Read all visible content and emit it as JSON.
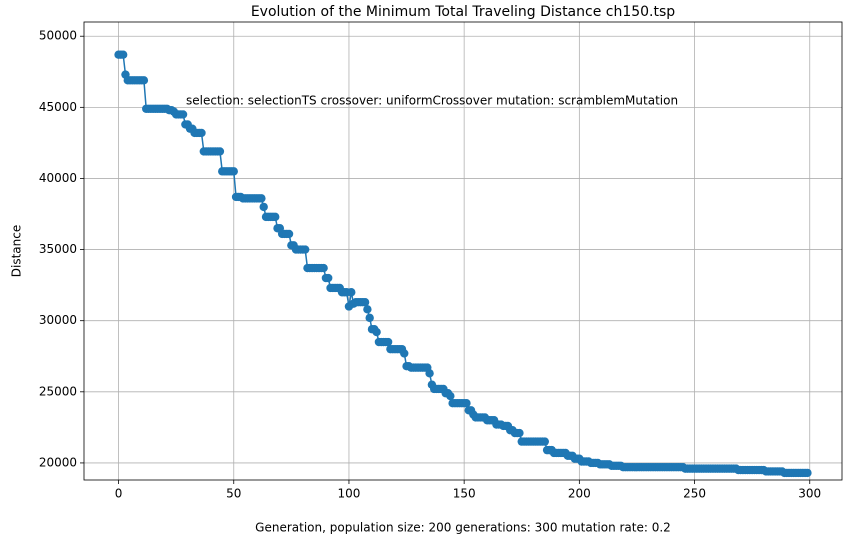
{
  "chart_data": {
    "type": "line",
    "title": "Evolution of the Minimum Total Traveling Distance ch150.tsp",
    "xlabel": "Generation,  population size: 200 generations: 300 mutation rate: 0.2",
    "ylabel": "Distance",
    "annotation": "selection: selectionTS crossover: uniformCrossover mutation: scramblemMutation",
    "color": "#1f77b4",
    "marker": "o",
    "grid": true,
    "xlim": [
      -15,
      314
    ],
    "ylim": [
      18800,
      51000
    ],
    "xticks": [
      0,
      50,
      100,
      150,
      200,
      250,
      300
    ],
    "yticks": [
      20000,
      25000,
      30000,
      35000,
      40000,
      45000,
      50000
    ],
    "x": [
      0,
      1,
      2,
      3,
      4,
      5,
      6,
      7,
      8,
      9,
      10,
      11,
      12,
      13,
      14,
      15,
      16,
      17,
      18,
      19,
      20,
      21,
      22,
      23,
      24,
      25,
      26,
      27,
      28,
      29,
      30,
      31,
      32,
      33,
      34,
      35,
      36,
      37,
      38,
      39,
      40,
      41,
      42,
      43,
      44,
      45,
      46,
      47,
      48,
      49,
      50,
      51,
      52,
      53,
      54,
      55,
      56,
      57,
      58,
      59,
      60,
      61,
      62,
      63,
      64,
      65,
      66,
      67,
      68,
      69,
      70,
      71,
      72,
      73,
      74,
      75,
      76,
      77,
      78,
      79,
      80,
      81,
      82,
      83,
      84,
      85,
      86,
      87,
      88,
      89,
      90,
      91,
      92,
      93,
      94,
      95,
      96,
      97,
      98,
      99,
      100,
      101,
      102,
      103,
      104,
      105,
      106,
      107,
      108,
      109,
      110,
      111,
      112,
      113,
      114,
      115,
      116,
      117,
      118,
      119,
      120,
      121,
      122,
      123,
      124,
      125,
      126,
      127,
      128,
      129,
      130,
      131,
      132,
      133,
      134,
      135,
      136,
      137,
      138,
      139,
      140,
      141,
      142,
      143,
      144,
      145,
      146,
      147,
      148,
      149,
      150,
      151,
      152,
      153,
      154,
      155,
      156,
      157,
      158,
      159,
      160,
      161,
      162,
      163,
      164,
      165,
      166,
      167,
      168,
      169,
      170,
      171,
      172,
      173,
      174,
      175,
      176,
      177,
      178,
      179,
      180,
      181,
      182,
      183,
      184,
      185,
      186,
      187,
      188,
      189,
      190,
      191,
      192,
      193,
      194,
      195,
      196,
      197,
      198,
      199,
      200,
      201,
      202,
      203,
      204,
      205,
      206,
      207,
      208,
      209,
      210,
      211,
      212,
      213,
      214,
      215,
      216,
      217,
      218,
      219,
      220,
      221,
      222,
      223,
      224,
      225,
      226,
      227,
      228,
      229,
      230,
      231,
      232,
      233,
      234,
      235,
      236,
      237,
      238,
      239,
      240,
      241,
      242,
      243,
      244,
      245,
      246,
      247,
      248,
      249,
      250,
      251,
      252,
      253,
      254,
      255,
      256,
      257,
      258,
      259,
      260,
      261,
      262,
      263,
      264,
      265,
      266,
      267,
      268,
      269,
      270,
      271,
      272,
      273,
      274,
      275,
      276,
      277,
      278,
      279,
      280,
      281,
      282,
      283,
      284,
      285,
      286,
      287,
      288,
      289,
      290,
      291,
      292,
      293,
      294,
      295,
      296,
      297,
      298,
      299
    ],
    "values": [
      48700,
      48700,
      48700,
      47300,
      46900,
      46900,
      46900,
      46900,
      46900,
      46900,
      46900,
      46900,
      44900,
      44900,
      44900,
      44900,
      44900,
      44900,
      44900,
      44900,
      44900,
      44900,
      44800,
      44800,
      44700,
      44500,
      44500,
      44500,
      44500,
      43800,
      43800,
      43500,
      43500,
      43200,
      43200,
      43200,
      43200,
      41900,
      41900,
      41900,
      41900,
      41900,
      41900,
      41900,
      41900,
      40500,
      40500,
      40500,
      40500,
      40500,
      40500,
      38700,
      38700,
      38700,
      38600,
      38600,
      38600,
      38600,
      38600,
      38600,
      38600,
      38600,
      38600,
      38000,
      37300,
      37300,
      37300,
      37300,
      37300,
      36500,
      36500,
      36100,
      36100,
      36100,
      36100,
      35300,
      35300,
      35000,
      35000,
      35000,
      35000,
      35000,
      33700,
      33700,
      33700,
      33700,
      33700,
      33700,
      33700,
      33700,
      33000,
      33000,
      32300,
      32300,
      32300,
      32300,
      32300,
      32000,
      32000,
      32000,
      31000,
      32000,
      31200,
      31300,
      31300,
      31300,
      31300,
      31300,
      30800,
      30200,
      29400,
      29400,
      29200,
      28500,
      28500,
      28500,
      28500,
      28500,
      28000,
      28000,
      28000,
      28000,
      28000,
      28000,
      27700,
      26800,
      26800,
      26700,
      26700,
      26700,
      26700,
      26700,
      26700,
      26700,
      26700,
      26300,
      25500,
      25200,
      25200,
      25200,
      25200,
      25200,
      24900,
      24900,
      24700,
      24200,
      24200,
      24200,
      24200,
      24200,
      24200,
      24200,
      23700,
      23700,
      23400,
      23200,
      23200,
      23200,
      23200,
      23200,
      23000,
      23000,
      23000,
      23000,
      22700,
      22700,
      22700,
      22600,
      22600,
      22600,
      22300,
      22300,
      22100,
      22100,
      22100,
      21500,
      21500,
      21500,
      21500,
      21500,
      21500,
      21500,
      21500,
      21500,
      21500,
      21500,
      20900,
      20900,
      20900,
      20700,
      20700,
      20700,
      20700,
      20700,
      20700,
      20500,
      20500,
      20500,
      20300,
      20300,
      20300,
      20100,
      20100,
      20100,
      20100,
      20000,
      20000,
      20000,
      20000,
      19900,
      19900,
      19900,
      19900,
      19900,
      19800,
      19800,
      19800,
      19800,
      19800,
      19700,
      19700,
      19700,
      19700,
      19700,
      19700,
      19700,
      19700,
      19700,
      19700,
      19700,
      19700,
      19700,
      19700,
      19700,
      19700,
      19700,
      19700,
      19700,
      19700,
      19700,
      19700,
      19700,
      19700,
      19700,
      19700,
      19700,
      19600,
      19600,
      19600,
      19600,
      19600,
      19600,
      19600,
      19600,
      19600,
      19600,
      19600,
      19600,
      19600,
      19600,
      19600,
      19600,
      19600,
      19600,
      19600,
      19600,
      19600,
      19600,
      19600,
      19500,
      19500,
      19500,
      19500,
      19500,
      19500,
      19500,
      19500,
      19500,
      19500,
      19500,
      19500,
      19400,
      19400,
      19400,
      19400,
      19400,
      19400,
      19400,
      19400,
      19300,
      19300,
      19300,
      19300,
      19300,
      19300,
      19300,
      19300,
      19300,
      19300,
      19300
    ]
  }
}
